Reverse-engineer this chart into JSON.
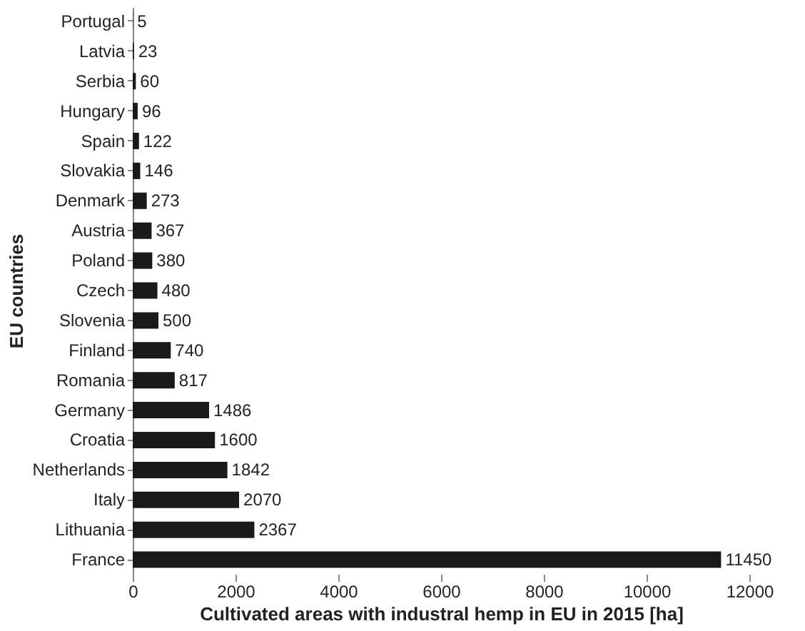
{
  "chart_data": {
    "type": "bar",
    "orientation": "horizontal",
    "xlabel": "Cultivated areas with industral hemp in EU in 2015 [ha]",
    "ylabel": "EU countries",
    "categories": [
      "Portugal",
      "Latvia",
      "Serbia",
      "Hungary",
      "Spain",
      "Slovakia",
      "Denmark",
      "Austria",
      "Poland",
      "Czech",
      "Slovenia",
      "Finland",
      "Romania",
      "Germany",
      "Croatia",
      "Netherlands",
      "Italy",
      "Lithuania",
      "France"
    ],
    "values": [
      5,
      23,
      60,
      96,
      122,
      146,
      273,
      367,
      380,
      480,
      500,
      740,
      817,
      1486,
      1600,
      1842,
      2070,
      2367,
      11450
    ],
    "color": "#1a1a1a",
    "xlim": [
      0,
      12000
    ],
    "xticks": [
      0,
      2000,
      4000,
      6000,
      8000,
      10000,
      12000
    ],
    "data_labels": true,
    "grid": false
  }
}
